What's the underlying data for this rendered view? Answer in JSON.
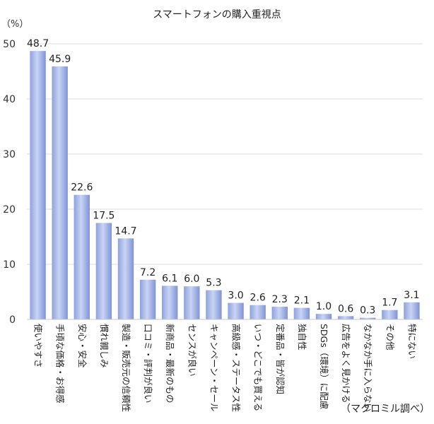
{
  "chart_data": {
    "type": "bar",
    "title": "スマートフォンの購入重視点",
    "unit_label": "（%）",
    "source": "（マクロミル調べ）",
    "ylim": [
      0,
      50
    ],
    "yticks": [
      0,
      10,
      20,
      30,
      40,
      50
    ],
    "grid": "horizontal",
    "bar_color": "#a8b8e8",
    "categories": [
      "使いやすさ",
      "手頃な価格・お得感",
      "安心・安全",
      "慣れ親しみ",
      "製造・販売元の信頼性",
      "口コミ・評判が良い",
      "新商品・最新のもの",
      "センスが良い",
      "キャンペーン・セール",
      "高級感・ステータス性",
      "いつ・どこでも買える",
      "定番品・皆が認知",
      "独自性",
      "SDGs（環境）に配慮",
      "広告をよく見かける",
      "なかなか手に入らない",
      "その他",
      "特にない"
    ],
    "values": [
      48.7,
      45.9,
      22.6,
      17.5,
      14.7,
      7.2,
      6.1,
      6.0,
      5.3,
      3.0,
      2.6,
      2.3,
      2.1,
      1.0,
      0.6,
      0.3,
      1.7,
      3.1
    ],
    "value_labels": [
      "48.7",
      "45.9",
      "22.6",
      "17.5",
      "14.7",
      "7.2",
      "6.1",
      "6.0",
      "5.3",
      "3.0",
      "2.6",
      "2.3",
      "2.1",
      "1.0",
      "0.6",
      "0.3",
      "1.7",
      "3.1"
    ]
  }
}
